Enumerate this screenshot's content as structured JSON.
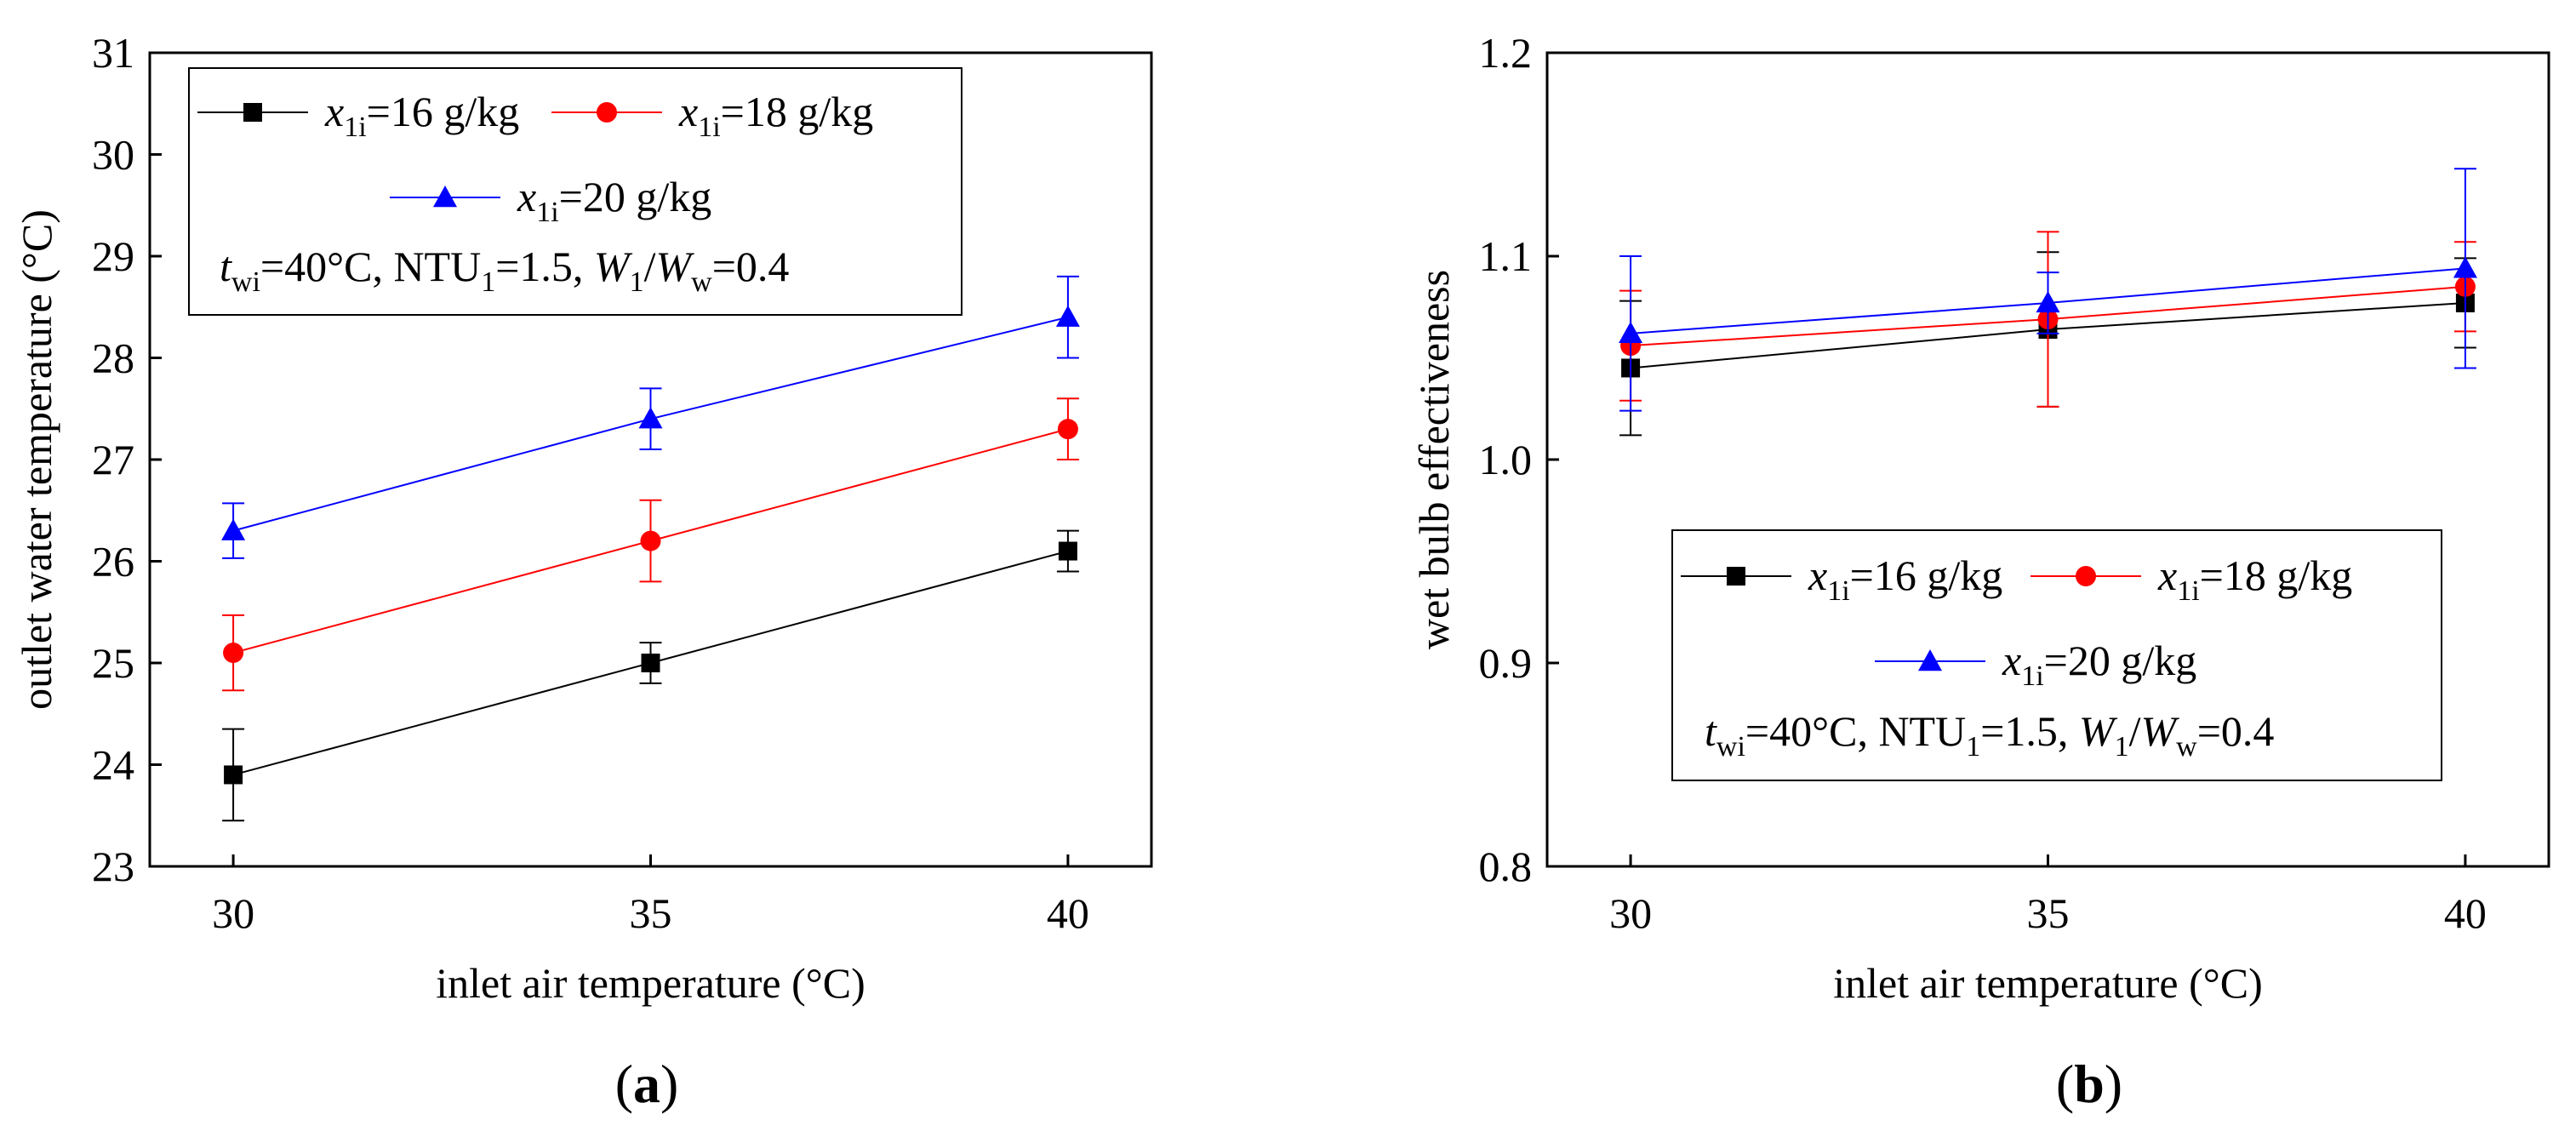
{
  "chart_data": [
    {
      "type": "line",
      "panel_label_open": "(",
      "panel_label": "a",
      "panel_label_close": ")",
      "xlabel": "inlet air temperature (°C)",
      "ylabel": "outlet water temperature (°C)",
      "x": [
        30,
        35,
        40
      ],
      "xlim": [
        29.0,
        41.0
      ],
      "ylim": [
        23,
        31
      ],
      "xticks": [
        30,
        35,
        40
      ],
      "yticks": [
        23,
        24,
        25,
        26,
        27,
        28,
        29,
        30,
        31
      ],
      "legend_position": "top-left",
      "series": [
        {
          "name_var": "x",
          "name_sub": "1i",
          "name_rest": "=16 g/kg",
          "marker": "square",
          "color": "#000000",
          "values": [
            23.9,
            25.0,
            26.1
          ],
          "errors": [
            0.45,
            0.2,
            0.2
          ]
        },
        {
          "name_var": "x",
          "name_sub": "1i",
          "name_rest": "=18 g/kg",
          "marker": "circle",
          "color": "#ff0000",
          "values": [
            25.1,
            26.2,
            27.3
          ],
          "errors": [
            0.37,
            0.4,
            0.3
          ]
        },
        {
          "name_var": "x",
          "name_sub": "1i",
          "name_rest": "=20 g/kg",
          "marker": "triangle",
          "color": "#0000ff",
          "values": [
            26.3,
            27.4,
            28.4
          ],
          "errors": [
            0.27,
            0.3,
            0.4
          ]
        }
      ],
      "annotation": {
        "t": "t",
        "t_sub": "wi",
        "p1": "=40°C, NTU",
        "ntu_sub": "1",
        "p2": "=1.5, ",
        "w1": "W",
        "w1_sub": "1",
        "slash": "/",
        "w2": "W",
        "w2_sub": "w",
        "p3": "=0.4"
      }
    },
    {
      "type": "line",
      "panel_label_open": "(",
      "panel_label": "b",
      "panel_label_close": ")",
      "xlabel": "inlet air temperature (°C)",
      "ylabel": "wet bulb effectiveness",
      "x": [
        30,
        35,
        40
      ],
      "xlim": [
        29.0,
        41.0
      ],
      "ylim": [
        0.8,
        1.2
      ],
      "xticks": [
        30,
        35,
        40
      ],
      "yticks": [
        0.8,
        0.9,
        1.0,
        1.1,
        1.2
      ],
      "legend_position": "bottom-center",
      "series": [
        {
          "name_var": "x",
          "name_sub": "1i",
          "name_rest": "=16 g/kg",
          "marker": "square",
          "color": "#000000",
          "values": [
            1.045,
            1.064,
            1.077
          ],
          "errors": [
            0.033,
            0.038,
            0.022
          ]
        },
        {
          "name_var": "x",
          "name_sub": "1i",
          "name_rest": "=18 g/kg",
          "marker": "circle",
          "color": "#ff0000",
          "values": [
            1.056,
            1.069,
            1.085
          ],
          "errors": [
            0.027,
            0.043,
            0.022
          ]
        },
        {
          "name_var": "x",
          "name_sub": "1i",
          "name_rest": "=20 g/kg",
          "marker": "triangle",
          "color": "#0000ff",
          "values": [
            1.062,
            1.077,
            1.094
          ],
          "errors": [
            0.038,
            0.015,
            0.049
          ]
        }
      ],
      "annotation": {
        "t": "t",
        "t_sub": "wi",
        "p1": "=40°C, NTU",
        "ntu_sub": "1",
        "p2": "=1.5, ",
        "w1": "W",
        "w1_sub": "1",
        "slash": "/",
        "w2": "W",
        "w2_sub": "w",
        "p3": "=0.4"
      }
    }
  ]
}
